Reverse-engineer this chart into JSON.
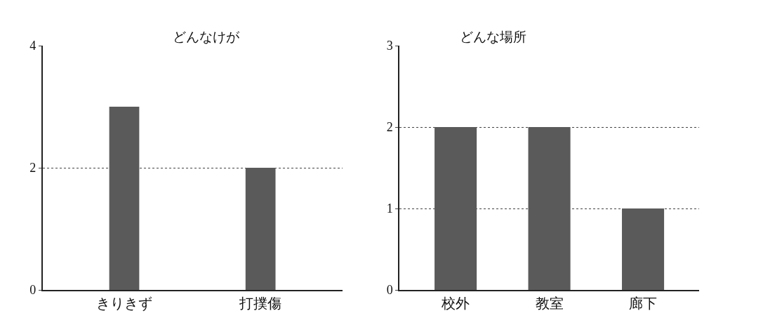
{
  "chart_data": [
    {
      "type": "bar",
      "title": "どんなけが",
      "categories": [
        "きりきず",
        "打撲傷"
      ],
      "values": [
        3,
        2
      ],
      "color": "#5a5a5a",
      "ylim": [
        0,
        4
      ],
      "yticks": [
        0,
        2,
        4
      ],
      "grid": "y"
    },
    {
      "type": "bar",
      "title": "どんな場所",
      "categories": [
        "校外",
        "教室",
        "廊下"
      ],
      "values": [
        2,
        2,
        1
      ],
      "color": "#5a5a5a",
      "ylim": [
        0,
        3
      ],
      "yticks": [
        0,
        1,
        2,
        3
      ],
      "grid": "y"
    }
  ]
}
